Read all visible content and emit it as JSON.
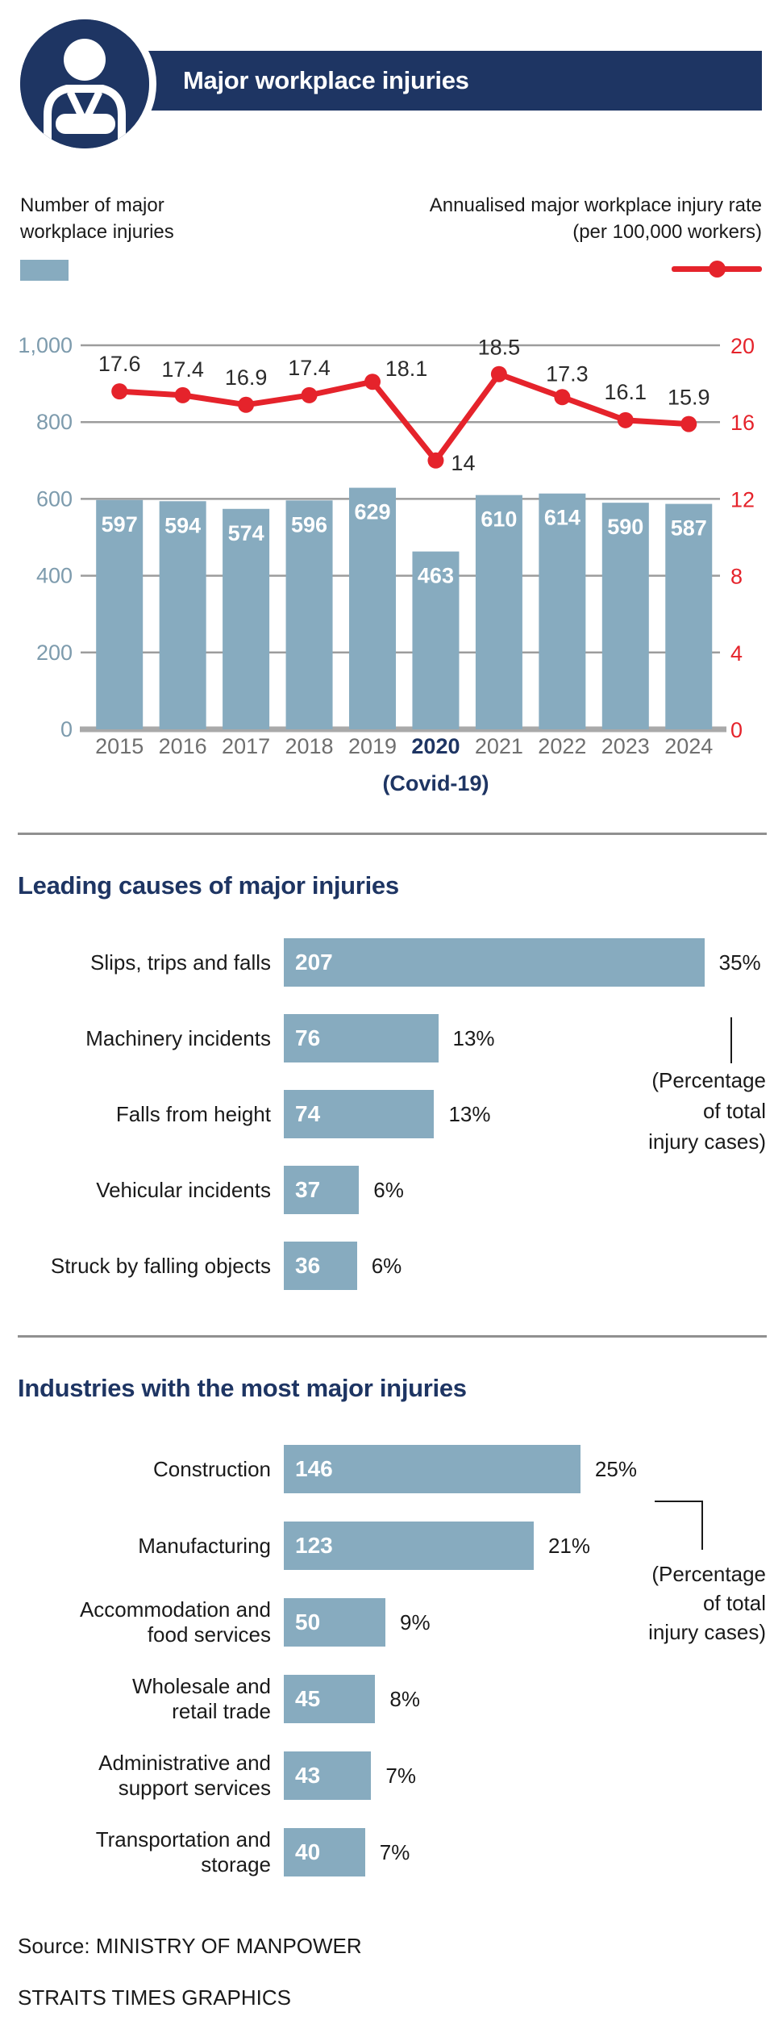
{
  "colors": {
    "navy": "#1e3563",
    "bar_blue": "#87abbf",
    "red": "#e5232b",
    "grid_gray": "#9c9c9c",
    "baseline_gray": "#a9a9a9",
    "left_axis_text": "#7d9bad",
    "x_label_gray": "#6f6f6f",
    "text_black": "#1a1a1a",
    "line_label_text": "#2b2b2b"
  },
  "header": {
    "title": "Major workplace injuries"
  },
  "legend": {
    "bars_label": "Number of major\nworkplace injuries",
    "line_label": "Annualised major workplace injury rate\n(per 100,000 workers)"
  },
  "chart_data": [
    {
      "type": "bar",
      "subtype": "combo-bar-line",
      "categories": [
        "2015",
        "2016",
        "2017",
        "2018",
        "2019",
        "2020",
        "2021",
        "2022",
        "2023",
        "2024"
      ],
      "series": [
        {
          "name": "Number of major workplace injuries",
          "type": "bar",
          "axis": "left",
          "values": [
            597,
            594,
            574,
            596,
            629,
            463,
            610,
            614,
            590,
            587
          ]
        },
        {
          "name": "Annualised major workplace injury rate (per 100,000 workers)",
          "type": "line",
          "axis": "right",
          "values": [
            17.6,
            17.4,
            16.9,
            17.4,
            18.1,
            14,
            18.5,
            17.3,
            16.1,
            15.9
          ]
        }
      ],
      "left_axis": {
        "ticks": [
          "1,000",
          "800",
          "600",
          "400",
          "200",
          "0"
        ],
        "range": [
          0,
          1000
        ]
      },
      "right_axis": {
        "ticks": [
          "20",
          "16",
          "12",
          "8",
          "4",
          "0"
        ],
        "range": [
          0,
          20
        ]
      },
      "highlight_category": "2020",
      "highlight_note": "(Covid-19)",
      "grid": true,
      "legend_position": "top"
    },
    {
      "type": "bar",
      "orientation": "horizontal",
      "title": "Leading causes of major injuries",
      "categories": [
        "Slips, trips and falls",
        "Machinery incidents",
        "Falls from height",
        "Vehicular incidents",
        "Struck by falling objects"
      ],
      "values": [
        207,
        76,
        74,
        37,
        36
      ],
      "percents": [
        "35%",
        "13%",
        "13%",
        "6%",
        "6%"
      ],
      "note": "(Percentage\nof total\ninjury cases)"
    },
    {
      "type": "bar",
      "orientation": "horizontal",
      "title": "Industries with the most major injuries",
      "categories": [
        "Construction",
        "Manufacturing",
        "Accommodation and\nfood services",
        "Wholesale and\nretail trade",
        "Administrative and\nsupport services",
        "Transportation and\nstorage"
      ],
      "values": [
        146,
        123,
        50,
        45,
        43,
        40
      ],
      "percents": [
        "25%",
        "21%",
        "9%",
        "8%",
        "7%",
        "7%"
      ],
      "note": "(Percentage\nof total\ninjury cases)"
    }
  ],
  "source": {
    "line1": "Source: MINISTRY OF MANPOWER",
    "line2": "STRAITS TIMES GRAPHICS"
  }
}
